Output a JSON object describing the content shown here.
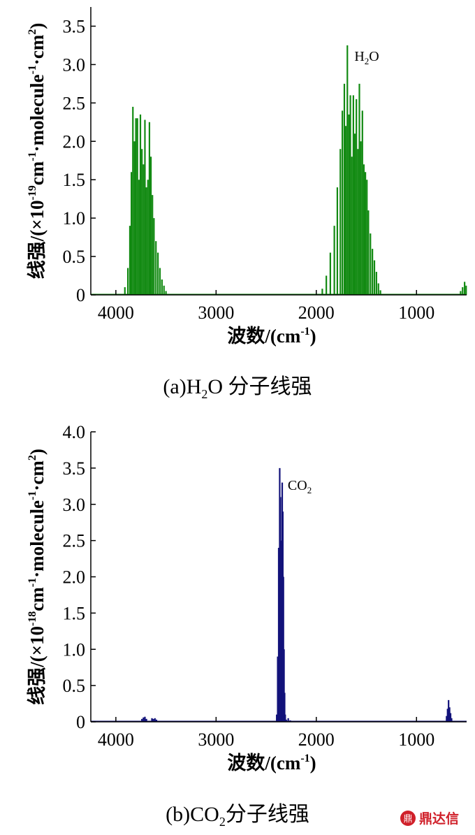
{
  "charts": [
    {
      "caption_parts": [
        "(a)H",
        "2",
        "O 分子线强"
      ],
      "chart_data": {
        "type": "line",
        "species": "H2O",
        "annotation_parts": [
          "H",
          "2",
          "O"
        ],
        "annotation_at": {
          "x": 1620,
          "y": 3.05
        },
        "ylabel_parts": [
          "线强/(×10",
          "-19",
          "cm",
          "-1",
          "·molecule",
          "-1",
          "·cm",
          "2",
          ")"
        ],
        "xlabel_parts": [
          "波数/(cm",
          "-1",
          ")"
        ],
        "xlim": [
          4250,
          500
        ],
        "ylim": [
          0,
          3.75
        ],
        "xticks": [
          4000,
          3000,
          2000,
          1000
        ],
        "yticks": [
          0,
          0.5,
          1.0,
          1.5,
          2.0,
          2.5,
          3.0,
          3.5
        ],
        "ytick_labels": [
          "0",
          "0.5",
          "1.0",
          "1.5",
          "2.0",
          "2.5",
          "3.0",
          "3.5"
        ],
        "color": "#128a12",
        "grid": false,
        "series": [
          {
            "x": [
              3910,
              3880,
              3860,
              3845,
              3830,
              3815,
              3800,
              3785,
              3770,
              3755,
              3740,
              3725,
              3710,
              3695,
              3680,
              3665,
              3650,
              3635,
              3620,
              3600,
              3580,
              3560,
              3540,
              3520,
              3500,
              1940,
              1900,
              1860,
              1820,
              1790,
              1760,
              1740,
              1720,
              1705,
              1690,
              1675,
              1660,
              1645,
              1630,
              1615,
              1600,
              1585,
              1570,
              1555,
              1540,
              1525,
              1510,
              1495,
              1480,
              1460,
              1440,
              1420,
              1400,
              1380,
              1360,
              560,
              540,
              520,
              505
            ],
            "y": [
              0.1,
              0.35,
              0.9,
              1.6,
              2.45,
              2.0,
              2.3,
              2.3,
              1.5,
              2.35,
              1.9,
              1.7,
              2.28,
              1.4,
              1.5,
              2.25,
              1.8,
              1.3,
              1.0,
              0.7,
              0.55,
              0.35,
              0.2,
              0.12,
              0.05,
              0.08,
              0.25,
              0.55,
              0.9,
              1.4,
              1.9,
              2.4,
              2.75,
              2.2,
              3.25,
              2.35,
              2.6,
              1.8,
              2.6,
              2.1,
              2.55,
              1.9,
              2.75,
              2.0,
              2.4,
              1.7,
              1.6,
              1.5,
              1.1,
              0.8,
              0.6,
              0.45,
              0.3,
              0.15,
              0.06,
              0.05,
              0.1,
              0.17,
              0.12
            ]
          }
        ]
      }
    },
    {
      "caption_parts": [
        "(b)CO",
        "2",
        "分子线强"
      ],
      "chart_data": {
        "type": "line",
        "species": "CO2",
        "annotation_parts": [
          "CO",
          "2"
        ],
        "annotation_at": {
          "x": 2285,
          "y": 3.2
        },
        "ylabel_parts": [
          "线强/(×10",
          "-18",
          "cm",
          "-1",
          "·molecule",
          "-1",
          "·cm",
          "2",
          ")"
        ],
        "xlabel_parts": [
          "波数/(cm",
          "-1",
          ")"
        ],
        "xlim": [
          4250,
          500
        ],
        "ylim": [
          0,
          4.0
        ],
        "xticks": [
          4000,
          3000,
          2000,
          1000
        ],
        "yticks": [
          0,
          0.5,
          1.0,
          1.5,
          2.0,
          2.5,
          3.0,
          3.5,
          4.0
        ],
        "ytick_labels": [
          "0",
          "0.5",
          "1.0",
          "1.5",
          "2.0",
          "2.5",
          "3.0",
          "3.5",
          "4.0"
        ],
        "color": "#12127a",
        "grid": false,
        "series": [
          {
            "x": [
              3740,
              3725,
              3710,
              3695,
              3640,
              3625,
              3610,
              3595,
              2395,
              2385,
              2375,
              2365,
              2358,
              2352,
              2346,
              2340,
              2334,
              2328,
              2322,
              2316,
              2310,
              2300,
              2280,
              2260,
              700,
              690,
              680,
              670,
              660,
              650
            ],
            "y": [
              0.04,
              0.06,
              0.07,
              0.04,
              0.05,
              0.04,
              0.05,
              0.03,
              0.1,
              0.9,
              2.4,
              3.5,
              3.1,
              2.5,
              1.6,
              3.3,
              2.9,
              2.0,
              1.0,
              0.4,
              0.1,
              0.03,
              0.05,
              0.02,
              0.08,
              0.18,
              0.3,
              0.2,
              0.12,
              0.05
            ]
          }
        ]
      }
    }
  ],
  "watermark": {
    "label": "鼎达信",
    "color": "#d0202a"
  }
}
